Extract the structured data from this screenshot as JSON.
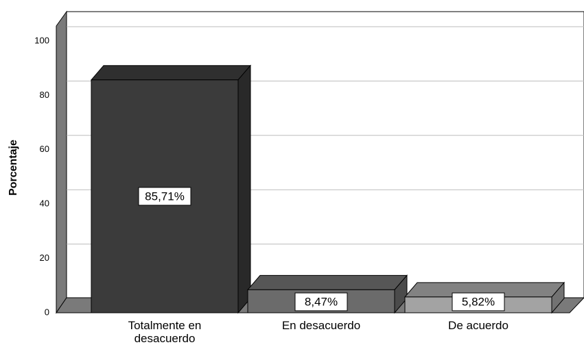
{
  "chart_data": {
    "type": "bar3d",
    "ylabel": "Porcentaje",
    "categories": [
      "Totalmente en desacuerdo",
      "En desacuerdo",
      "De acuerdo"
    ],
    "values": [
      85.71,
      8.47,
      5.82
    ],
    "value_labels": [
      "85,71%",
      "8,47%",
      "5,82%"
    ],
    "colors": [
      "#3b3b3b",
      "#6b6b6b",
      "#a3a3a3"
    ],
    "ylim": [
      0,
      100
    ],
    "yticks": [
      0,
      20,
      40,
      60,
      80,
      100
    ],
    "grid": true
  }
}
